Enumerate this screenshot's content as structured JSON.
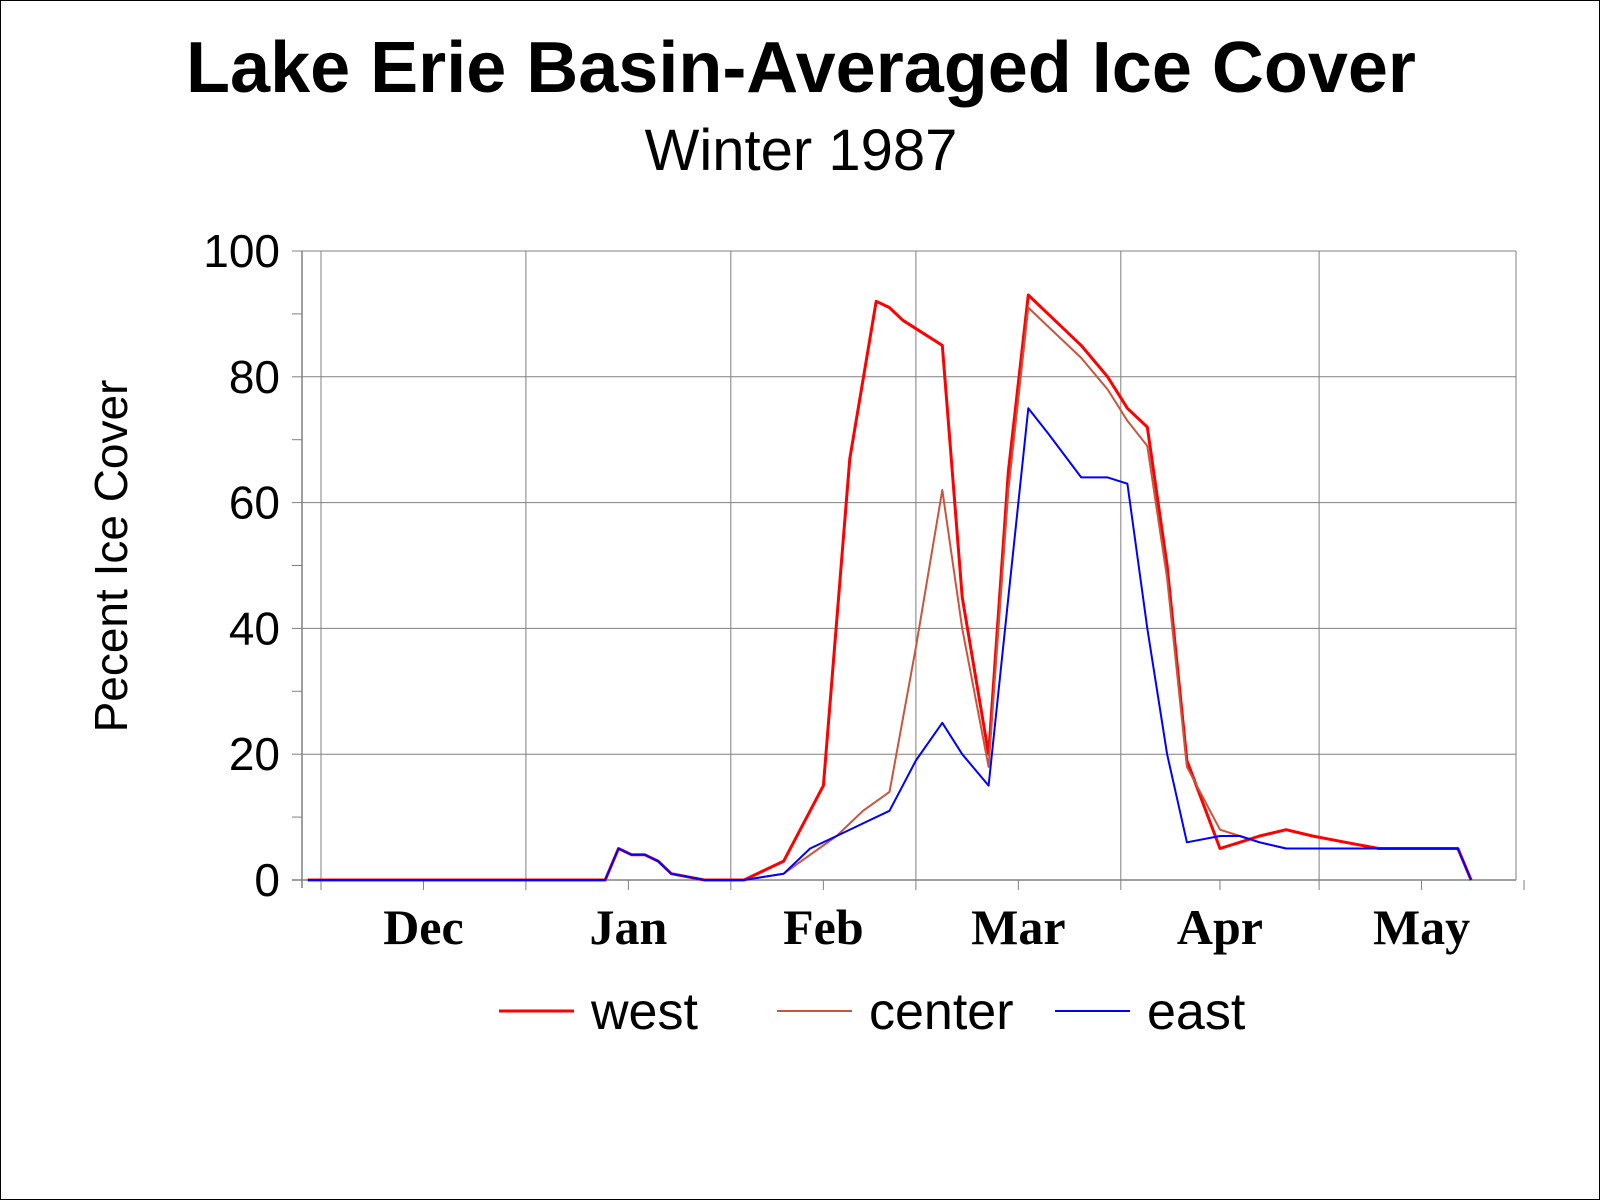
{
  "chart_data": {
    "type": "line",
    "title": "Lake Erie Basin-Averaged Ice Cover",
    "subtitle": "Winter 1987",
    "ylabel": "Pecent Ice Cover",
    "xlabel": "",
    "ylim": [
      0,
      100
    ],
    "yticks": [
      "0",
      "20",
      "40",
      "60",
      "80",
      "100"
    ],
    "xlim": [
      0,
      183
    ],
    "month_labels": [
      "Dec",
      "Jan",
      "Feb",
      "Mar",
      "Apr",
      "May"
    ],
    "grid": true,
    "legend_position": "bottom",
    "series": [
      {
        "name": "west",
        "color": "#ff0000",
        "x": [
          -2,
          43,
          45,
          47,
          49,
          51,
          53,
          58,
          64,
          70,
          76,
          80,
          84,
          86,
          88,
          91,
          94,
          97,
          101,
          104,
          107,
          110,
          115,
          119,
          122,
          125,
          128,
          131,
          136,
          139,
          142,
          146,
          150,
          155,
          160,
          165,
          172,
          174
        ],
        "values": [
          0,
          0,
          5,
          4,
          4,
          3,
          1,
          0,
          0,
          3,
          15,
          67,
          92,
          91,
          89,
          87,
          85,
          45,
          20,
          65,
          93,
          90,
          85,
          80,
          75,
          72,
          50,
          19,
          5,
          6,
          7,
          8,
          7,
          6,
          5,
          5,
          5,
          0
        ]
      },
      {
        "name": "center",
        "color": "#c8553d",
        "x": [
          -2,
          43,
          45,
          47,
          49,
          51,
          53,
          58,
          64,
          70,
          74,
          78,
          82,
          86,
          90,
          94,
          97,
          101,
          104,
          107,
          110,
          115,
          119,
          122,
          125,
          128,
          131,
          136,
          139,
          142,
          146,
          150,
          155,
          160,
          165,
          172,
          174
        ],
        "values": [
          0,
          0,
          5,
          4,
          4,
          3,
          1,
          0,
          0,
          1,
          4,
          7,
          11,
          14,
          37,
          62,
          40,
          18,
          62,
          91,
          88,
          83,
          78,
          73,
          69,
          48,
          18,
          8,
          7,
          6,
          5,
          5,
          5,
          5,
          5,
          5,
          0
        ]
      },
      {
        "name": "east",
        "color": "#0000ff",
        "x": [
          -2,
          43,
          45,
          47,
          49,
          51,
          53,
          58,
          64,
          70,
          74,
          78,
          82,
          86,
          90,
          94,
          97,
          101,
          104,
          107,
          110,
          115,
          119,
          122,
          125,
          128,
          131,
          136,
          139,
          142,
          146,
          150,
          155,
          160,
          165,
          172,
          174
        ],
        "values": [
          0,
          0,
          5,
          4,
          4,
          3,
          1,
          0,
          0,
          1,
          5,
          7,
          9,
          11,
          19,
          25,
          20,
          15,
          45,
          75,
          71,
          64,
          64,
          63,
          40,
          20,
          6,
          7,
          7,
          6,
          5,
          5,
          5,
          5,
          5,
          5,
          0
        ]
      }
    ]
  }
}
